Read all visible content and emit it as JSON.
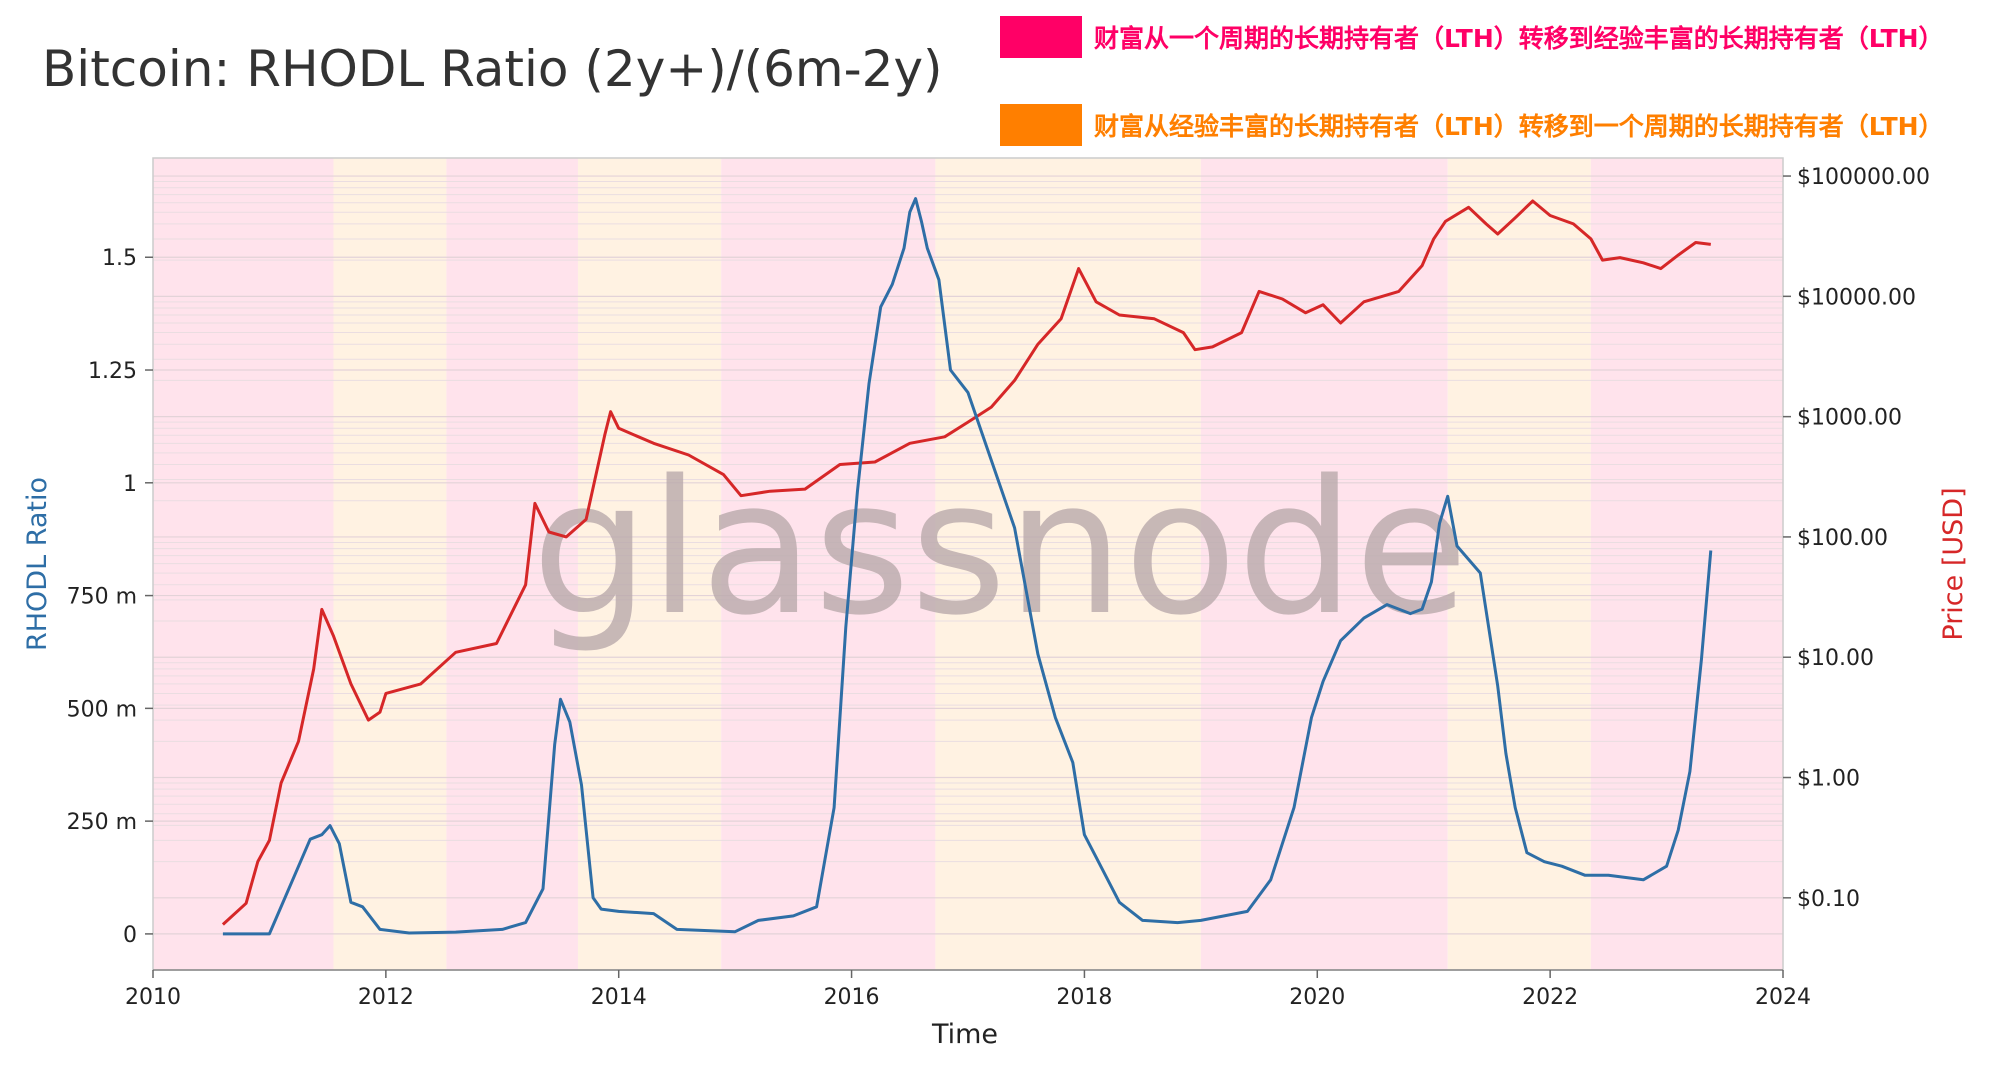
{
  "title": "Bitcoin: RHODL Ratio (2y+)/(6m-2y)",
  "legend": [
    {
      "label": "财富从一个周期的长期持有者（LTH）转移到经验丰富的长期持有者（LTH）",
      "color": "#ff0066"
    },
    {
      "label": "财富从经验丰富的长期持有者（LTH）转移到一个周期的长期持有者（LTH）",
      "color": "#ff7f00"
    }
  ],
  "watermark": "glassnode",
  "chart_data": {
    "type": "line",
    "xlabel": "Time",
    "ylabel": "RHODL Ratio",
    "y2label": "Price [USD]",
    "xlim": [
      2010,
      2024
    ],
    "x_ticks": [
      2010,
      2012,
      2014,
      2016,
      2018,
      2020,
      2022,
      2024
    ],
    "ylim": [
      -0.08,
      1.72
    ],
    "y_ticks": [
      {
        "value": 0,
        "label": "0"
      },
      {
        "value": 0.25,
        "label": "250 m"
      },
      {
        "value": 0.5,
        "label": "500 m"
      },
      {
        "value": 0.75,
        "label": "750 m"
      },
      {
        "value": 1.0,
        "label": "1"
      },
      {
        "value": 1.25,
        "label": "1.25"
      },
      {
        "value": 1.5,
        "label": "1.5"
      }
    ],
    "y2_scale": "log",
    "y2lim_log10": [
      -1.6,
      5.15
    ],
    "y2_ticks": [
      {
        "value": 0.1,
        "label": "$0.10"
      },
      {
        "value": 1,
        "label": "$1.00"
      },
      {
        "value": 10,
        "label": "$10.00"
      },
      {
        "value": 100,
        "label": "$100.00"
      },
      {
        "value": 1000,
        "label": "$1000.00"
      },
      {
        "value": 10000,
        "label": "$10000.00"
      },
      {
        "value": 100000,
        "label": "$100000.00"
      }
    ],
    "grid": true,
    "colors": {
      "rhodl": "#2e6ea6",
      "price": "#d62728",
      "pink_band": "#ffe3ec",
      "orange_band": "#fff2e2"
    },
    "bands": [
      {
        "start": 2010.0,
        "end": 2011.55,
        "legend_index": 0
      },
      {
        "start": 2011.55,
        "end": 2012.52,
        "legend_index": 1
      },
      {
        "start": 2012.52,
        "end": 2013.65,
        "legend_index": 0
      },
      {
        "start": 2013.65,
        "end": 2014.88,
        "legend_index": 1
      },
      {
        "start": 2014.88,
        "end": 2016.72,
        "legend_index": 0
      },
      {
        "start": 2016.72,
        "end": 2019.0,
        "legend_index": 1
      },
      {
        "start": 2019.0,
        "end": 2021.12,
        "legend_index": 0
      },
      {
        "start": 2021.12,
        "end": 2022.35,
        "legend_index": 1
      },
      {
        "start": 2022.35,
        "end": 2024.0,
        "legend_index": 0
      }
    ],
    "series": [
      {
        "axis": "left",
        "x": [
          2010.6,
          2011.0,
          2011.2,
          2011.35,
          2011.45,
          2011.52,
          2011.6,
          2011.7,
          2011.8,
          2011.95,
          2012.2,
          2012.6,
          2013.0,
          2013.2,
          2013.35,
          2013.45,
          2013.5,
          2013.58,
          2013.68,
          2013.78,
          2013.85,
          2014.0,
          2014.3,
          2014.5,
          2015.0,
          2015.2,
          2015.5,
          2015.7,
          2015.85,
          2015.95,
          2016.05,
          2016.15,
          2016.25,
          2016.35,
          2016.45,
          2016.5,
          2016.55,
          2016.6,
          2016.65,
          2016.75,
          2016.85,
          2017.0,
          2017.2,
          2017.4,
          2017.6,
          2017.75,
          2017.9,
          2018.0,
          2018.1,
          2018.3,
          2018.5,
          2018.8,
          2019.0,
          2019.4,
          2019.6,
          2019.8,
          2019.95,
          2020.05,
          2020.2,
          2020.4,
          2020.6,
          2020.8,
          2020.9,
          2020.98,
          2021.05,
          2021.12,
          2021.2,
          2021.4,
          2021.55,
          2021.62,
          2021.7,
          2021.8,
          2021.95,
          2022.1,
          2022.3,
          2022.5,
          2022.8,
          2023.0,
          2023.1,
          2023.2,
          2023.3,
          2023.38
        ],
        "values": [
          0.0,
          0.0,
          0.12,
          0.21,
          0.22,
          0.24,
          0.2,
          0.07,
          0.06,
          0.01,
          0.002,
          0.004,
          0.01,
          0.025,
          0.1,
          0.42,
          0.52,
          0.47,
          0.33,
          0.08,
          0.055,
          0.05,
          0.045,
          0.01,
          0.005,
          0.03,
          0.04,
          0.06,
          0.28,
          0.68,
          0.98,
          1.22,
          1.39,
          1.44,
          1.52,
          1.6,
          1.63,
          1.58,
          1.52,
          1.45,
          1.25,
          1.2,
          1.05,
          0.9,
          0.62,
          0.48,
          0.38,
          0.22,
          0.17,
          0.07,
          0.03,
          0.025,
          0.03,
          0.05,
          0.12,
          0.28,
          0.48,
          0.56,
          0.65,
          0.7,
          0.73,
          0.71,
          0.72,
          0.78,
          0.91,
          0.97,
          0.86,
          0.8,
          0.55,
          0.4,
          0.28,
          0.18,
          0.16,
          0.15,
          0.13,
          0.13,
          0.12,
          0.15,
          0.23,
          0.36,
          0.61,
          0.85
        ]
      },
      {
        "axis": "right",
        "x": [
          2010.6,
          2010.8,
          2010.9,
          2011.0,
          2011.1,
          2011.25,
          2011.38,
          2011.45,
          2011.55,
          2011.7,
          2011.85,
          2011.95,
          2012.0,
          2012.3,
          2012.6,
          2012.95,
          2013.2,
          2013.28,
          2013.4,
          2013.55,
          2013.72,
          2013.88,
          2013.93,
          2014.0,
          2014.3,
          2014.6,
          2014.9,
          2015.05,
          2015.3,
          2015.6,
          2015.9,
          2016.2,
          2016.5,
          2016.8,
          2017.0,
          2017.2,
          2017.4,
          2017.6,
          2017.8,
          2017.95,
          2018.1,
          2018.3,
          2018.6,
          2018.85,
          2018.95,
          2019.1,
          2019.35,
          2019.5,
          2019.7,
          2019.9,
          2020.05,
          2020.2,
          2020.4,
          2020.7,
          2020.9,
          2021.0,
          2021.1,
          2021.3,
          2021.45,
          2021.55,
          2021.7,
          2021.85,
          2022.0,
          2022.2,
          2022.35,
          2022.45,
          2022.6,
          2022.8,
          2022.95,
          2023.1,
          2023.25,
          2023.38
        ],
        "values": [
          0.06,
          0.09,
          0.2,
          0.3,
          0.9,
          2.0,
          8.0,
          25.0,
          15.0,
          6.0,
          3.0,
          3.5,
          5.0,
          6.0,
          11.0,
          13.0,
          40.0,
          190.0,
          110.0,
          100.0,
          140.0,
          700.0,
          1100.0,
          800.0,
          600.0,
          480.0,
          330.0,
          220.0,
          240.0,
          250.0,
          400.0,
          420.0,
          600.0,
          680.0,
          900.0,
          1200.0,
          2000.0,
          4000.0,
          6500.0,
          17000.0,
          9000.0,
          7000.0,
          6500.0,
          5000.0,
          3600.0,
          3800.0,
          5000.0,
          11000.0,
          9500.0,
          7300.0,
          8500.0,
          6000.0,
          9000.0,
          11000.0,
          18000.0,
          30000.0,
          42000.0,
          55000.0,
          40000.0,
          33000.0,
          45000.0,
          62000.0,
          47000.0,
          40000.0,
          30000.0,
          20000.0,
          21000.0,
          19000.0,
          17000.0,
          22000.0,
          28000.0,
          27000.0
        ]
      }
    ]
  }
}
